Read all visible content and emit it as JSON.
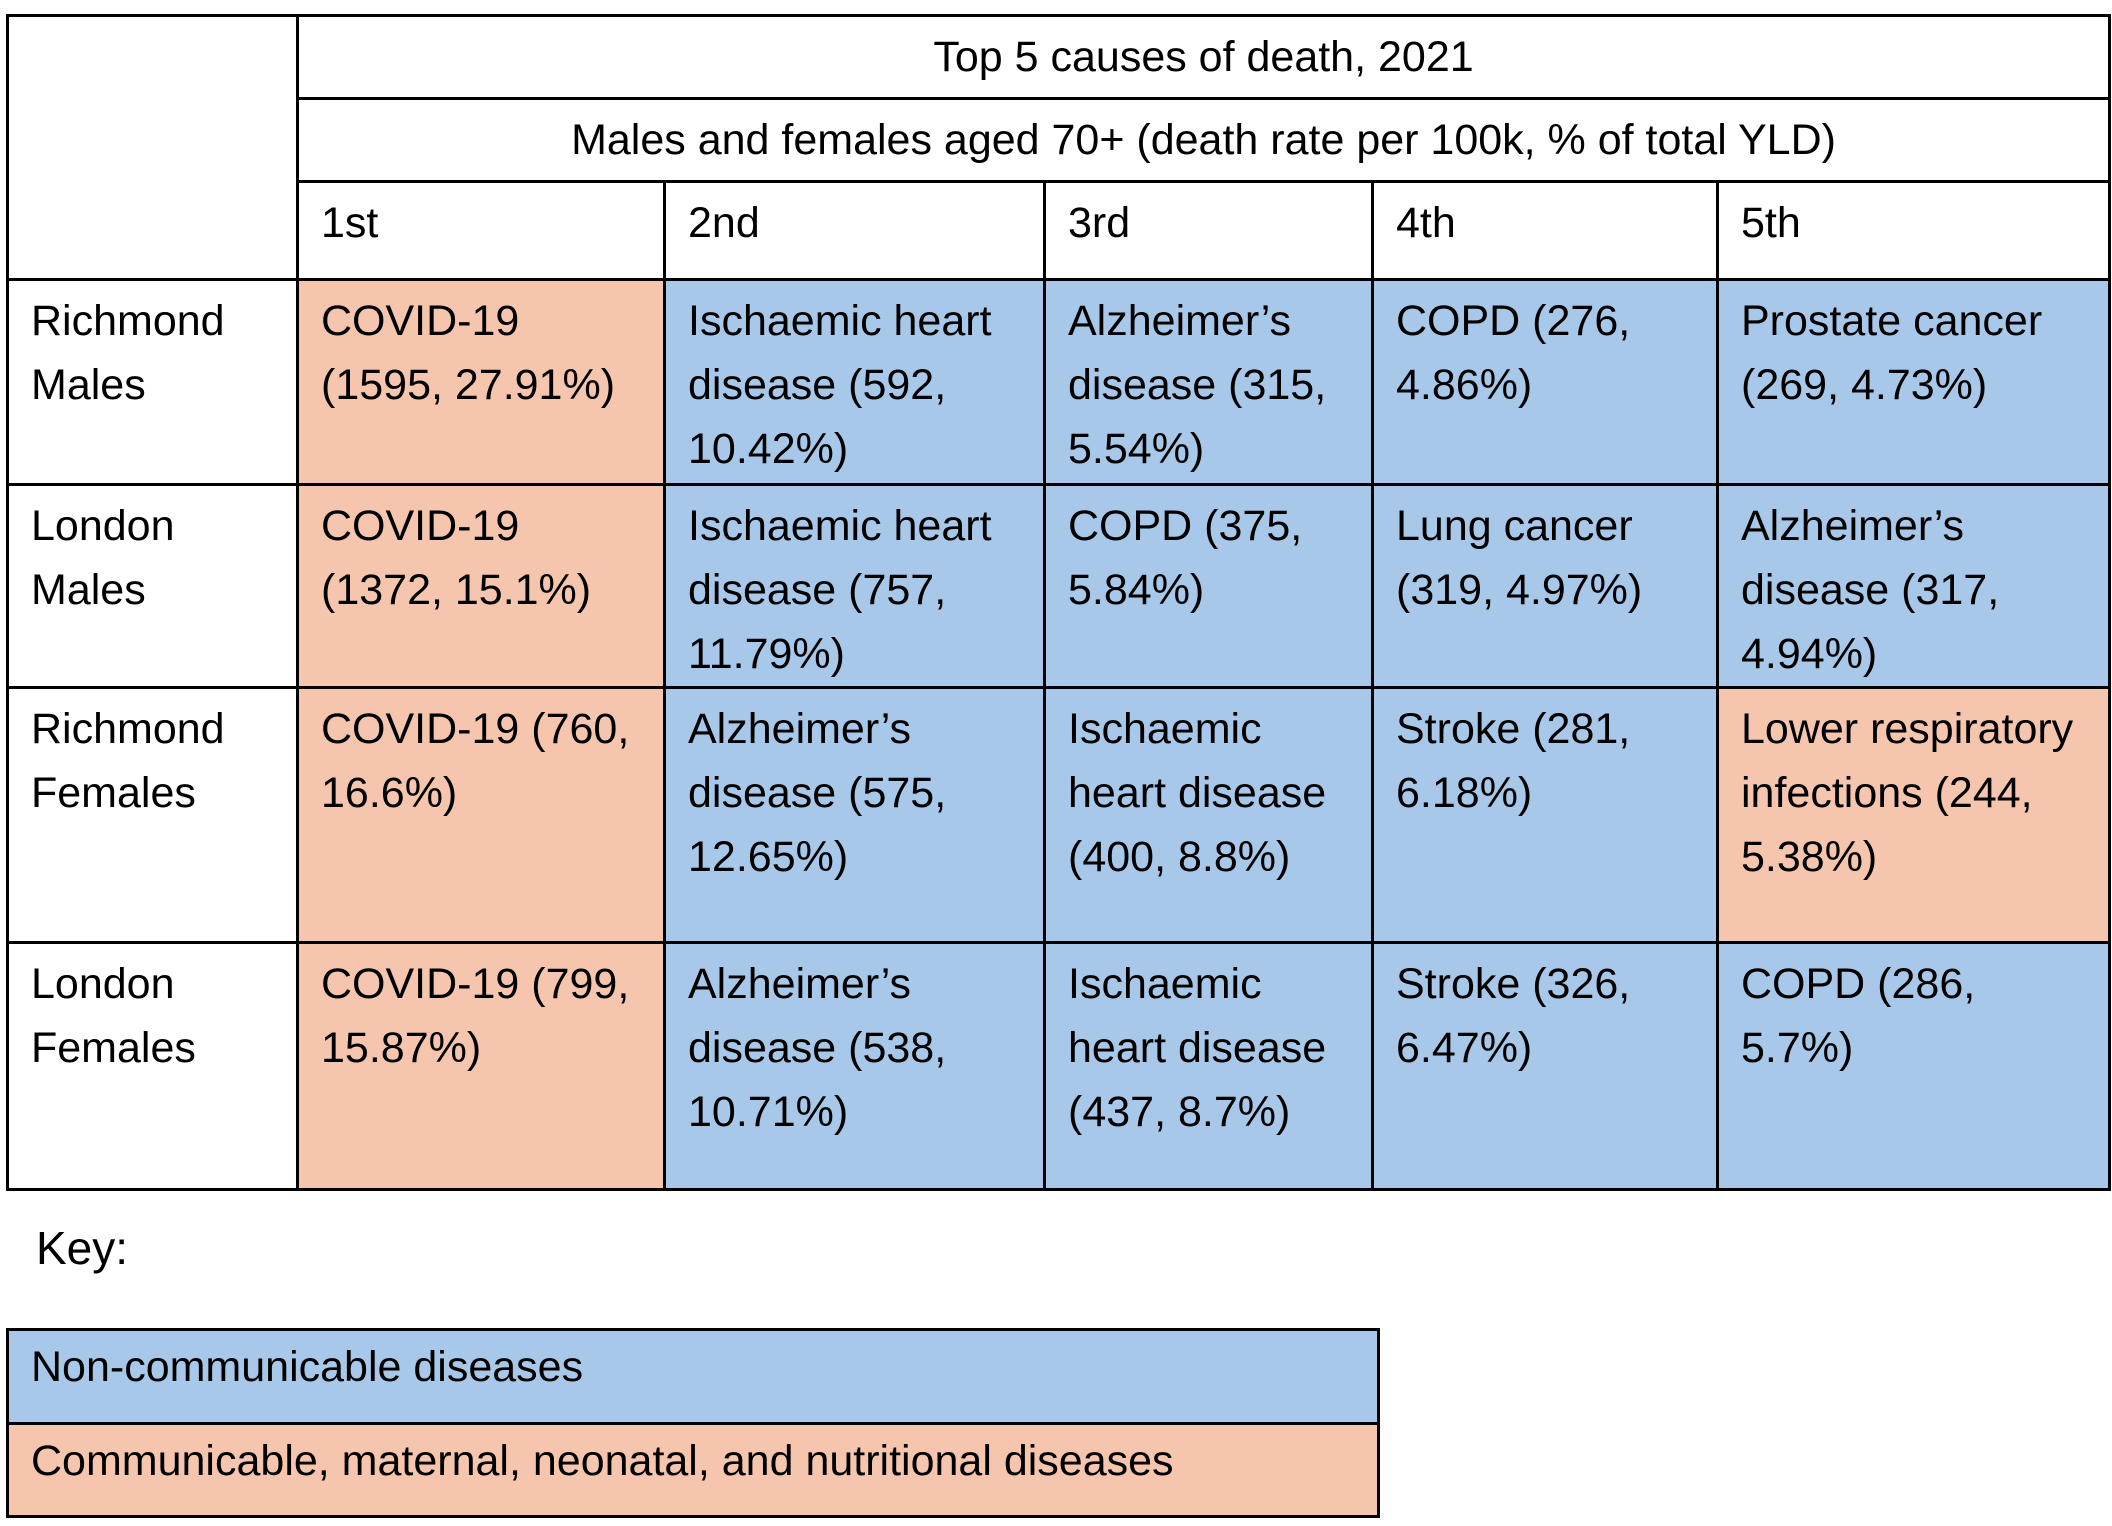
{
  "colors": {
    "non_communicable": "#a8c8ea",
    "communicable": "#f5c6ad"
  },
  "table": {
    "title": "Top 5 causes of death, 2021",
    "subtitle": "Males and females aged 70+ (death rate per 100k, % of total YLD)",
    "rank_headers": [
      "1st",
      "2nd",
      "3rd",
      "4th",
      "5th"
    ],
    "rows": [
      {
        "label": "Richmond Males",
        "cells": [
          {
            "text": "COVID-19 (1595, 27.91%)",
            "category": "communicable"
          },
          {
            "text": "Ischaemic heart disease (592, 10.42%)",
            "category": "non_communicable"
          },
          {
            "text": "Alzheimer’s disease (315, 5.54%)",
            "category": "non_communicable"
          },
          {
            "text": "COPD (276, 4.86%)",
            "category": "non_communicable"
          },
          {
            "text": "Prostate cancer (269, 4.73%)",
            "category": "non_communicable"
          }
        ]
      },
      {
        "label": "London Males",
        "cells": [
          {
            "text": "COVID-19 (1372, 15.1%)",
            "category": "communicable"
          },
          {
            "text": "Ischaemic heart disease (757, 11.79%)",
            "category": "non_communicable"
          },
          {
            "text": "COPD (375, 5.84%)",
            "category": "non_communicable"
          },
          {
            "text": "Lung cancer (319, 4.97%)",
            "category": "non_communicable"
          },
          {
            "text": "Alzheimer’s disease (317, 4.94%)",
            "category": "non_communicable"
          }
        ]
      },
      {
        "label": "Richmond Females",
        "cells": [
          {
            "text": "COVID-19 (760, 16.6%)",
            "category": "communicable"
          },
          {
            "text": "Alzheimer’s disease (575, 12.65%)",
            "category": "non_communicable"
          },
          {
            "text": "Ischaemic heart disease (400, 8.8%)",
            "category": "non_communicable"
          },
          {
            "text": "Stroke (281, 6.18%)",
            "category": "non_communicable"
          },
          {
            "text": "Lower respiratory infections (244, 5.38%)",
            "category": "communicable"
          }
        ]
      },
      {
        "label": "London Females",
        "cells": [
          {
            "text": "COVID-19 (799, 15.87%)",
            "category": "communicable"
          },
          {
            "text": "Alzheimer’s disease (538, 10.71%)",
            "category": "non_communicable"
          },
          {
            "text": "Ischaemic heart disease (437, 8.7%)",
            "category": "non_communicable"
          },
          {
            "text": "Stroke (326, 6.47%)",
            "category": "non_communicable"
          },
          {
            "text": "COPD (286, 5.7%)",
            "category": "non_communicable"
          }
        ]
      }
    ]
  },
  "key": {
    "title": "Key:",
    "items": [
      {
        "label": "Non-communicable diseases",
        "category": "non_communicable"
      },
      {
        "label": "Communicable, maternal, neonatal, and nutritional diseases",
        "category": "communicable"
      }
    ]
  },
  "chart_data": {
    "type": "table",
    "title": "Top 5 causes of death, 2021",
    "subtitle": "Males and females aged 70+ (death rate per 100k, % of total YLD)",
    "columns": [
      "1st",
      "2nd",
      "3rd",
      "4th",
      "5th"
    ],
    "rows": [
      {
        "group": "Richmond Males",
        "entries": [
          {
            "cause": "COVID-19",
            "death_rate_per_100k": 1595,
            "pct_total_yld": 27.91,
            "category": "communicable"
          },
          {
            "cause": "Ischaemic heart disease",
            "death_rate_per_100k": 592,
            "pct_total_yld": 10.42,
            "category": "non_communicable"
          },
          {
            "cause": "Alzheimer’s disease",
            "death_rate_per_100k": 315,
            "pct_total_yld": 5.54,
            "category": "non_communicable"
          },
          {
            "cause": "COPD",
            "death_rate_per_100k": 276,
            "pct_total_yld": 4.86,
            "category": "non_communicable"
          },
          {
            "cause": "Prostate cancer",
            "death_rate_per_100k": 269,
            "pct_total_yld": 4.73,
            "category": "non_communicable"
          }
        ]
      },
      {
        "group": "London Males",
        "entries": [
          {
            "cause": "COVID-19",
            "death_rate_per_100k": 1372,
            "pct_total_yld": 15.1,
            "category": "communicable"
          },
          {
            "cause": "Ischaemic heart disease",
            "death_rate_per_100k": 757,
            "pct_total_yld": 11.79,
            "category": "non_communicable"
          },
          {
            "cause": "COPD",
            "death_rate_per_100k": 375,
            "pct_total_yld": 5.84,
            "category": "non_communicable"
          },
          {
            "cause": "Lung cancer",
            "death_rate_per_100k": 319,
            "pct_total_yld": 4.97,
            "category": "non_communicable"
          },
          {
            "cause": "Alzheimer’s disease",
            "death_rate_per_100k": 317,
            "pct_total_yld": 4.94,
            "category": "non_communicable"
          }
        ]
      },
      {
        "group": "Richmond Females",
        "entries": [
          {
            "cause": "COVID-19",
            "death_rate_per_100k": 760,
            "pct_total_yld": 16.6,
            "category": "communicable"
          },
          {
            "cause": "Alzheimer’s disease",
            "death_rate_per_100k": 575,
            "pct_total_yld": 12.65,
            "category": "non_communicable"
          },
          {
            "cause": "Ischaemic heart disease",
            "death_rate_per_100k": 400,
            "pct_total_yld": 8.8,
            "category": "non_communicable"
          },
          {
            "cause": "Stroke",
            "death_rate_per_100k": 281,
            "pct_total_yld": 6.18,
            "category": "non_communicable"
          },
          {
            "cause": "Lower respiratory infections",
            "death_rate_per_100k": 244,
            "pct_total_yld": 5.38,
            "category": "communicable"
          }
        ]
      },
      {
        "group": "London Females",
        "entries": [
          {
            "cause": "COVID-19",
            "death_rate_per_100k": 799,
            "pct_total_yld": 15.87,
            "category": "communicable"
          },
          {
            "cause": "Alzheimer’s disease",
            "death_rate_per_100k": 538,
            "pct_total_yld": 10.71,
            "category": "non_communicable"
          },
          {
            "cause": "Ischaemic heart disease",
            "death_rate_per_100k": 437,
            "pct_total_yld": 8.7,
            "category": "non_communicable"
          },
          {
            "cause": "Stroke",
            "death_rate_per_100k": 326,
            "pct_total_yld": 6.47,
            "category": "non_communicable"
          },
          {
            "cause": "COPD",
            "death_rate_per_100k": 286,
            "pct_total_yld": 5.7,
            "category": "non_communicable"
          }
        ]
      }
    ]
  }
}
